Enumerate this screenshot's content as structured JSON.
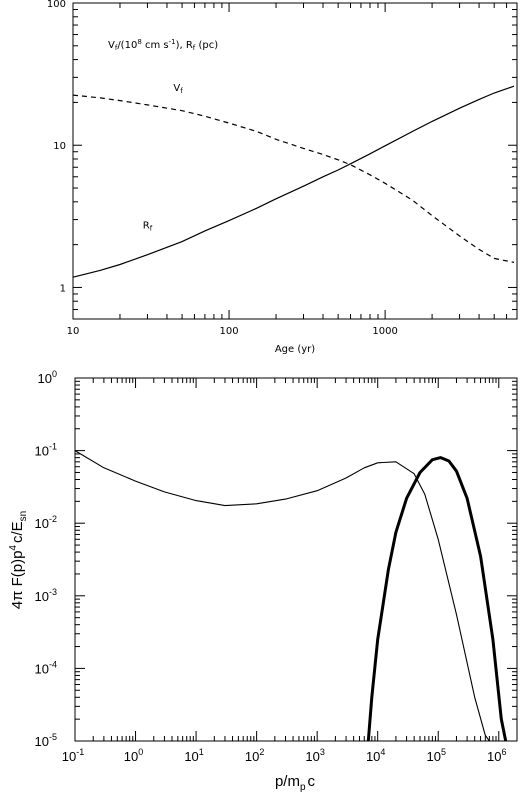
{
  "chart_data": [
    {
      "type": "line",
      "xlabel": "Age (yr)",
      "ylabel": "",
      "annotation": "V_f/(10^8 cm s^-1), R_f (pc)",
      "annotation_parts": [
        "V",
        "f",
        "/(10",
        "8",
        " cm s",
        "-1",
        "), R",
        "f",
        " (pc)"
      ],
      "x_scale": "log",
      "y_scale": "log",
      "xlim": [
        10,
        7000
      ],
      "ylim": [
        0.6,
        100
      ],
      "x_ticks": [
        {
          "value": 10,
          "label": "10"
        },
        {
          "value": 100,
          "label": "100"
        },
        {
          "value": 1000,
          "label": "1000"
        }
      ],
      "y_ticks": [
        {
          "value": 1,
          "label": "1"
        },
        {
          "value": 10,
          "label": "10"
        },
        {
          "value": 100,
          "label": "100"
        }
      ],
      "series": [
        {
          "name": "V_f",
          "label_main": "V",
          "label_sub": "f",
          "label_at": [
            44,
            24
          ],
          "style": "dashed",
          "x": [
            10,
            15,
            20,
            30,
            50,
            70,
            100,
            150,
            200,
            300,
            400,
            500,
            600,
            800,
            1000,
            1500,
            2000,
            3000,
            4000,
            5000,
            6700
          ],
          "y": [
            22.5,
            21.5,
            20.6,
            19.2,
            17.5,
            16.0,
            14.3,
            12.5,
            11.0,
            9.5,
            8.6,
            7.9,
            7.3,
            6.2,
            5.4,
            4.1,
            3.2,
            2.3,
            1.85,
            1.6,
            1.5
          ]
        },
        {
          "name": "R_f",
          "label_main": "R",
          "label_sub": "f",
          "label_at": [
            28,
            2.6
          ],
          "style": "solid",
          "x": [
            10,
            15,
            20,
            30,
            50,
            70,
            100,
            150,
            200,
            300,
            400,
            500,
            600,
            800,
            1000,
            1500,
            2000,
            3000,
            4000,
            5000,
            6700
          ],
          "y": [
            1.18,
            1.32,
            1.45,
            1.7,
            2.1,
            2.5,
            2.95,
            3.6,
            4.2,
            5.15,
            6.0,
            6.7,
            7.4,
            8.7,
            9.9,
            12.5,
            14.7,
            18.2,
            21.0,
            23.3,
            26.0
          ]
        }
      ]
    },
    {
      "type": "line",
      "xlabel": "p/m_p c",
      "xlabel_parts": [
        "p/m",
        "p",
        "c"
      ],
      "ylabel": "4π F(p)p^4 c/E_sn",
      "ylabel_parts": [
        "4π F(p)p",
        "4",
        "c/E",
        "sn"
      ],
      "x_scale": "log",
      "y_scale": "log",
      "xlim": [
        0.1,
        2000000
      ],
      "ylim": [
        1e-05,
        1
      ],
      "x_ticks": [
        {
          "value": 0.1,
          "base": "10",
          "exp": "-1"
        },
        {
          "value": 1,
          "base": "10",
          "exp": "0"
        },
        {
          "value": 10,
          "base": "10",
          "exp": "1"
        },
        {
          "value": 100,
          "base": "10",
          "exp": "2"
        },
        {
          "value": 1000,
          "base": "10",
          "exp": "3"
        },
        {
          "value": 10000,
          "base": "10",
          "exp": "4"
        },
        {
          "value": 100000,
          "base": "10",
          "exp": "5"
        },
        {
          "value": 1000000,
          "base": "10",
          "exp": "6"
        }
      ],
      "y_ticks": [
        {
          "value": 1e-05,
          "base": "10",
          "exp": "-5"
        },
        {
          "value": 0.0001,
          "base": "10",
          "exp": "-4"
        },
        {
          "value": 0.001,
          "base": "10",
          "exp": "-3"
        },
        {
          "value": 0.01,
          "base": "10",
          "exp": "-2"
        },
        {
          "value": 0.1,
          "base": "10",
          "exp": "-1"
        },
        {
          "value": 1,
          "base": "10",
          "exp": "0"
        }
      ],
      "series": [
        {
          "style": "thin",
          "x": [
            0.1,
            0.3,
            1,
            3,
            10,
            30,
            100,
            300,
            1000,
            3000,
            6000,
            10000,
            20000,
            40000,
            60000,
            100000,
            200000,
            400000,
            600000,
            700000
          ],
          "y": [
            0.1,
            0.058,
            0.038,
            0.027,
            0.0205,
            0.0175,
            0.0185,
            0.0215,
            0.028,
            0.042,
            0.058,
            0.068,
            0.07,
            0.048,
            0.025,
            0.006,
            0.00055,
            4e-05,
            1.2e-05,
            1e-05
          ]
        },
        {
          "style": "thick",
          "x": [
            7000,
            8000,
            10000,
            15000,
            20000,
            30000,
            50000,
            80000,
            110000,
            150000,
            200000,
            300000,
            500000,
            800000,
            1100000,
            1300000
          ],
          "y": [
            1e-05,
            4e-05,
            0.00025,
            0.0023,
            0.0075,
            0.022,
            0.05,
            0.075,
            0.08,
            0.072,
            0.052,
            0.022,
            0.0035,
            0.00025,
            2e-05,
            1e-05
          ]
        }
      ]
    }
  ]
}
